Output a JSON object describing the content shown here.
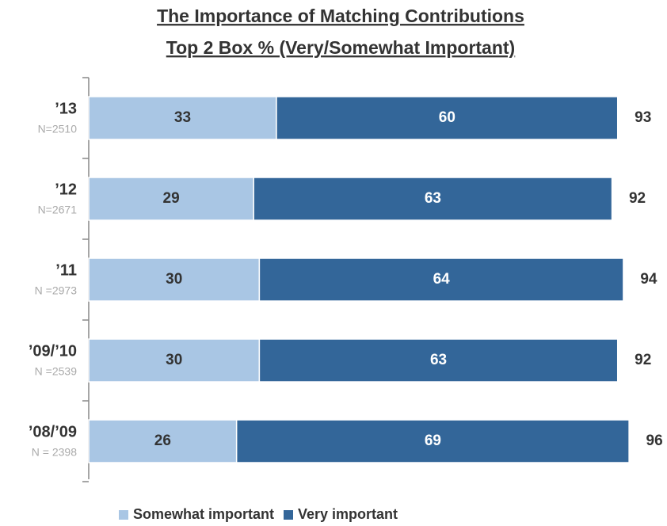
{
  "chart_data": {
    "type": "stacked-bar-horizontal",
    "title": "The Importance of Matching Contributions",
    "subtitle": "Top 2 Box % (Very/Somewhat Important)",
    "categories": [
      "’13",
      "’12",
      "’11",
      "’09/’10",
      "’08/’09"
    ],
    "sample_sizes": [
      "N=2510",
      "N=2671",
      "N =2973",
      "N =2539",
      "N = 2398"
    ],
    "series": [
      {
        "name": "Somewhat important",
        "color": "#a9c6e4",
        "label_color": "#333333",
        "values": [
          33,
          29,
          30,
          30,
          26
        ]
      },
      {
        "name": "Very important",
        "color": "#336699",
        "label_color": "#ffffff",
        "values": [
          60,
          63,
          64,
          63,
          69
        ]
      }
    ],
    "totals": [
      93,
      92,
      94,
      92,
      96
    ],
    "xlim": [
      0,
      100
    ],
    "legend": "bottom"
  }
}
